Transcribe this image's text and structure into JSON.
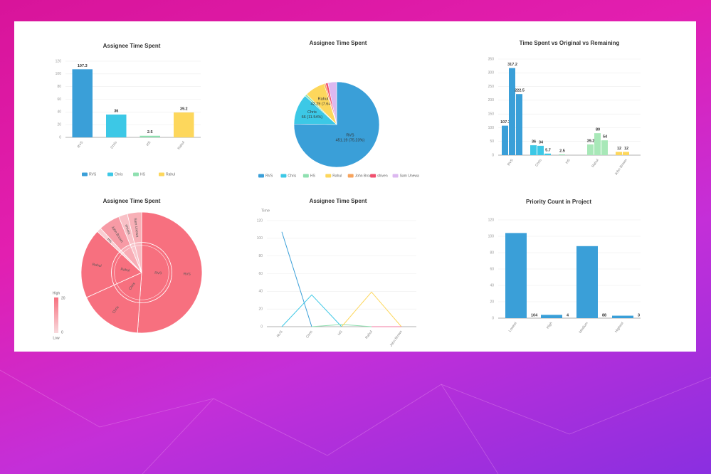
{
  "chart_data": [
    {
      "type": "bar",
      "title": "Assignee Time Spent",
      "categories": [
        "RVS",
        "Chris",
        "HS",
        "Rahul"
      ],
      "values": [
        107.3,
        36,
        2.5,
        39.2
      ],
      "colors": [
        "#3a9fd8",
        "#3cc8e6",
        "#8fe0b0",
        "#fdd75c"
      ],
      "ylim": [
        0,
        120
      ],
      "yticks": [
        0,
        20,
        40,
        60,
        80,
        100,
        120
      ],
      "grid": true,
      "value_labels_at": "top",
      "legend": "bottom"
    },
    {
      "type": "pie",
      "title": "Assignee Time Spent",
      "categories": [
        "RVS",
        "Chris",
        "HS",
        "Rahul",
        "John Brown",
        "shiven",
        "Sam Unewa"
      ],
      "values": [
        75.23,
        11.54,
        0.8,
        7.64,
        0.6,
        0.9,
        3.29
      ],
      "value_labels": [
        "451.19 (75.23%)",
        "66 (11.54%)",
        null,
        "42.29 (7.64%)",
        null,
        null,
        null
      ],
      "colors": [
        "#3a9fd8",
        "#3cc8e6",
        "#8fe0b0",
        "#fdd75c",
        "#f7a35c",
        "#f0506e",
        "#dcb8f0"
      ],
      "legend": "bottom"
    },
    {
      "type": "bar",
      "title": "Time Spent vs Original vs Remaining",
      "categories": [
        "RVS",
        "Chris",
        "HS",
        "Rahul",
        "John Brown"
      ],
      "colors": [
        "#3a9fd8",
        "#3cc8e6",
        "#8fe0b0",
        "#a8e8b8",
        "#fdd75c"
      ],
      "series": [
        {
          "values": [
            107.3,
            36,
            2.5,
            39.2,
            12
          ]
        },
        {
          "values": [
            317.2,
            34,
            null,
            80,
            12
          ]
        },
        {
          "values": [
            222.5,
            5.7,
            null,
            54,
            null
          ]
        }
      ],
      "ylim": [
        0,
        350
      ],
      "yticks": [
        0,
        50,
        100,
        150,
        200,
        250,
        300,
        350
      ],
      "grid": true,
      "value_labels_at": "top"
    },
    {
      "type": "sunburst",
      "title": "Assignee Time Spent",
      "categories": [
        "RVS",
        "Chris",
        "Rahul",
        "HS",
        "John Brown",
        "shiven",
        "Sam Unewa"
      ],
      "values": [
        107.3,
        36,
        39.2,
        2.5,
        12,
        5,
        8
      ],
      "visual_map": {
        "min": 0,
        "max": 20,
        "high": "High",
        "low": "Low",
        "colors": [
          "#f8dadd",
          "#f7707f"
        ]
      }
    },
    {
      "type": "line",
      "title": "Assignee Time Spent",
      "y_name": "Time",
      "categories": [
        "RVS",
        "Chris",
        "HS",
        "Rahul",
        "John Brown"
      ],
      "series": [
        {
          "color": "#3a9fd8",
          "values": [
            107.3,
            0,
            null,
            null,
            null
          ]
        },
        {
          "color": "#3cc8e6",
          "values": [
            0,
            36,
            0,
            null,
            null
          ]
        },
        {
          "color": "#8fe0b0",
          "values": [
            null,
            0,
            2.5,
            0,
            null
          ]
        },
        {
          "color": "#fdd75c",
          "values": [
            null,
            null,
            0,
            39.2,
            0
          ]
        },
        {
          "color": "#f07aa0",
          "values": [
            null,
            null,
            null,
            0,
            0
          ]
        }
      ],
      "ylim": [
        0,
        120
      ],
      "yticks": [
        0,
        20,
        40,
        60,
        80,
        100,
        120
      ],
      "grid": true
    },
    {
      "type": "bar",
      "title": "Priority Count in Project",
      "categories": [
        "Lowest",
        "High",
        "Medium",
        "Highest"
      ],
      "values": [
        104,
        4,
        88,
        3
      ],
      "color": "#3a9fd8",
      "ylim": [
        0,
        120
      ],
      "yticks": [
        0,
        20,
        40,
        60,
        80,
        100,
        120
      ],
      "grid": true,
      "value_labels_at": "right"
    }
  ]
}
